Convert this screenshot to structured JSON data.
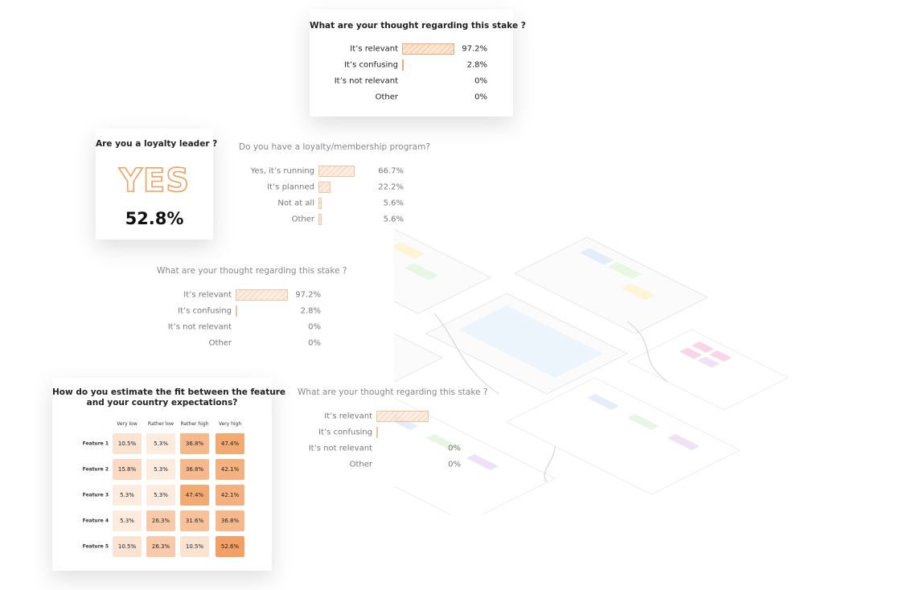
{
  "stake_card": {
    "title": "What are your thought regarding this stake ?",
    "rows": [
      {
        "label": "It’s relevant",
        "value": 97.2,
        "value_label": "97.2%"
      },
      {
        "label": "It’s confusing",
        "value": 2.8,
        "value_label": "2.8%"
      },
      {
        "label": "It’s not relevant",
        "value": 0,
        "value_label": "0%"
      },
      {
        "label": "Other",
        "value": 0,
        "value_label": "0%"
      }
    ]
  },
  "leader_card": {
    "title": "Are you a loyalty leader ?",
    "answer": "YES",
    "share": "52.8%"
  },
  "program_panel": {
    "title": "Do you have a loyalty/membership program?",
    "rows": [
      {
        "label": "Yes, it’s running",
        "value": 66.7,
        "value_label": "66.7%"
      },
      {
        "label": "It’s planned",
        "value": 22.2,
        "value_label": "22.2%"
      },
      {
        "label": "Not at all",
        "value": 5.6,
        "value_label": "5.6%"
      },
      {
        "label": "Other",
        "value": 5.6,
        "value_label": "5.6%"
      }
    ]
  },
  "stake_panel": {
    "title": "What are your thought regarding this stake ?",
    "rows": [
      {
        "label": "It’s relevant",
        "value": 97.2,
        "value_label": "97.2%"
      },
      {
        "label": "It’s confusing",
        "value": 2.8,
        "value_label": "2.8%"
      },
      {
        "label": "It’s not relevant",
        "value": 0,
        "value_label": "0%"
      },
      {
        "label": "Other",
        "value": 0,
        "value_label": "0%"
      }
    ]
  },
  "stake_panel_2": {
    "title": "What are your thought regarding this stake ?",
    "rows": [
      {
        "label": "It’s relevant",
        "value": 97.2,
        "value_label": null
      },
      {
        "label": "It’s confusing",
        "value": 2.8,
        "value_label": null
      },
      {
        "label": "It’s not relevant",
        "value": 0,
        "value_label": "0%"
      },
      {
        "label": "Other",
        "value": 0,
        "value_label": "0%"
      }
    ]
  },
  "heatmap_card": {
    "title_lines": [
      "How do you estimate the fit between the feature",
      "and your country expectations?"
    ],
    "columns": [
      "Very low",
      "Rather low",
      "Rather high",
      "Very high"
    ],
    "rows": [
      {
        "label": "Feature 1",
        "values": [
          10.5,
          5.3,
          36.8,
          47.4
        ],
        "value_labels": [
          "10.5%",
          "5.3%",
          "36.8%",
          "47.4%"
        ]
      },
      {
        "label": "Feature 2",
        "values": [
          15.8,
          5.3,
          36.8,
          42.1
        ],
        "value_labels": [
          "15.8%",
          "5.3%",
          "36.8%",
          "42.1%"
        ]
      },
      {
        "label": "Feature 3",
        "values": [
          5.3,
          5.3,
          47.4,
          42.1
        ],
        "value_labels": [
          "5.3%",
          "5.3%",
          "47.4%",
          "42.1%"
        ]
      },
      {
        "label": "Feature 4",
        "values": [
          5.3,
          26.3,
          31.6,
          36.8
        ],
        "value_labels": [
          "5.3%",
          "26.3%",
          "31.6%",
          "36.8%"
        ]
      },
      {
        "label": "Feature 5",
        "values": [
          10.5,
          26.3,
          10.5,
          52.6
        ],
        "value_labels": [
          "10.5%",
          "26.3%",
          "10.5%",
          "52.6%"
        ]
      }
    ]
  }
}
